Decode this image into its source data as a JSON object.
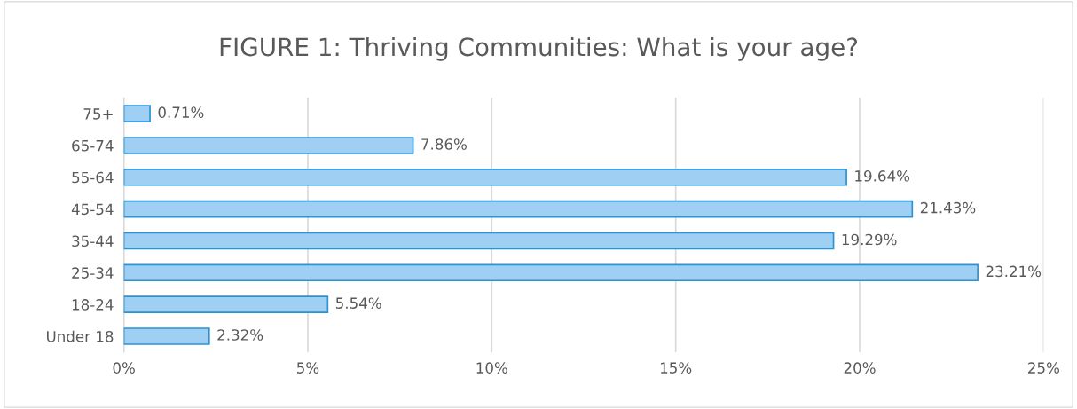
{
  "chart_data": {
    "type": "bar",
    "orientation": "horizontal",
    "title": "FIGURE 1: Thriving Communities: What is your age?",
    "categories": [
      "75+",
      "65-74",
      "55-64",
      "45-54",
      "35-44",
      "25-34",
      "18-24",
      "Under 18"
    ],
    "values": [
      0.71,
      7.86,
      19.64,
      21.43,
      19.29,
      23.21,
      5.54,
      2.32
    ],
    "value_labels": [
      "0.71%",
      "7.86%",
      "19.64%",
      "21.43%",
      "19.29%",
      "23.21%",
      "5.54%",
      "2.32%"
    ],
    "color": "#9fcff2",
    "xlim": [
      0,
      25
    ],
    "xticks": [
      {
        "value": 0,
        "label": "0%"
      },
      {
        "value": 5,
        "label": "5%"
      },
      {
        "value": 10,
        "label": "10%"
      },
      {
        "value": 15,
        "label": "15%"
      },
      {
        "value": 20,
        "label": "20%"
      },
      {
        "value": 25,
        "label": "25%"
      }
    ],
    "grid": "x"
  }
}
